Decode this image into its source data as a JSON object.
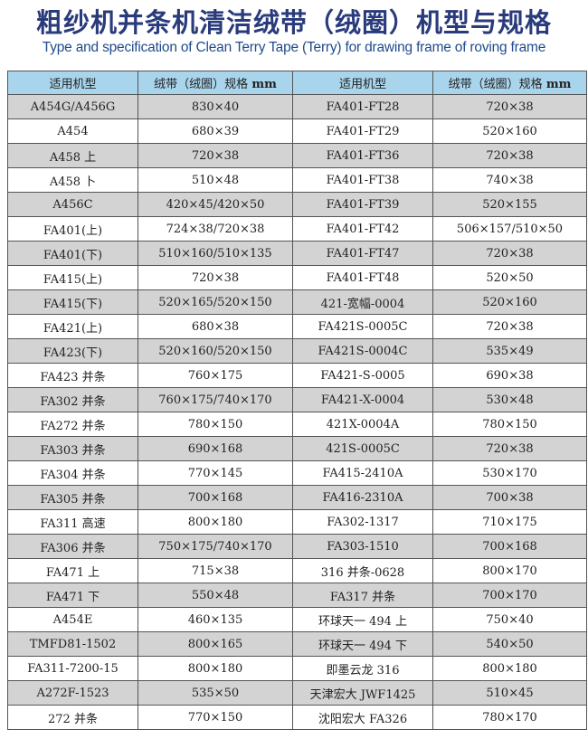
{
  "title": "粗纱机并条机清洁绒带（绒圈）机型与规格",
  "subtitle": "Type and specification of Clean Terry Tape (Terry) for drawing frame of roving frame",
  "table": {
    "headers": [
      "适用机型",
      "绒带（绒圈）规格 mm",
      "适用机型",
      "绒带（绒圈）规格 mm"
    ],
    "rows": [
      [
        "A454G/A456G",
        "830×40",
        "FA401-FT28",
        "720×38"
      ],
      [
        "A454",
        "680×39",
        "FA401-FT29",
        "520×160"
      ],
      [
        "A458 上",
        "720×38",
        "FA401-FT36",
        "720×38"
      ],
      [
        "A458 卜",
        "510×48",
        "FA401-FT38",
        "740×38"
      ],
      [
        "A456C",
        "420×45/420×50",
        "FA401-FT39",
        "520×155"
      ],
      [
        "FA401(上)",
        "724×38/720×38",
        "FA401-FT42",
        "506×157/510×50"
      ],
      [
        "FA401(下)",
        "510×160/510×135",
        "FA401-FT47",
        "720×38"
      ],
      [
        "FA415(上)",
        "720×38",
        "FA401-FT48",
        "520×50"
      ],
      [
        "FA415(下)",
        "520×165/520×150",
        "421-宽幅-0004",
        "520×160"
      ],
      [
        "FA421(上)",
        "680×38",
        "FA421S-0005C",
        "720×38"
      ],
      [
        "FA423(下)",
        "520×160/520×150",
        "FA421S-0004C",
        "535×49"
      ],
      [
        "FA423 并条",
        "760×175",
        "FA421-S-0005",
        "690×38"
      ],
      [
        "FA302 并条",
        "760×175/740×170",
        "FA421-X-0004",
        "530×48"
      ],
      [
        "FA272 并条",
        "780×150",
        "421X-0004A",
        "780×150"
      ],
      [
        "FA303 并条",
        "690×168",
        "421S-0005C",
        "720×38"
      ],
      [
        "FA304 并条",
        "770×145",
        "FA415-2410A",
        "530×170"
      ],
      [
        "FA305 并条",
        "700×168",
        "FA416-2310A",
        "700×38"
      ],
      [
        "FA311 高速",
        "800×180",
        "FA302-1317",
        "710×175"
      ],
      [
        "FA306 并条",
        "750×175/740×170",
        "FA303-1510",
        "700×168"
      ],
      [
        "FA471 上",
        "715×38",
        "316 并条-0628",
        "800×170"
      ],
      [
        "FA471 下",
        "550×48",
        "FA317 并条",
        "700×170"
      ],
      [
        "A454E",
        "460×135",
        "环球天一 494 上",
        "750×40"
      ],
      [
        "TMFD81-1502",
        "800×165",
        "环球天一 494 下",
        "540×50"
      ],
      [
        "FA311-7200-15",
        "800×180",
        "即墨云龙 316",
        "800×180"
      ],
      [
        "A272F-1523",
        "535×50",
        "天津宏大 JWF1425",
        "510×45"
      ],
      [
        "272 并条",
        "770×150",
        "沈阳宏大 FA326",
        "780×170"
      ]
    ]
  },
  "colors": {
    "title": "#2a3b7c",
    "header_bg": "#a9d5ec",
    "stripe": "#d3d3d3"
  }
}
